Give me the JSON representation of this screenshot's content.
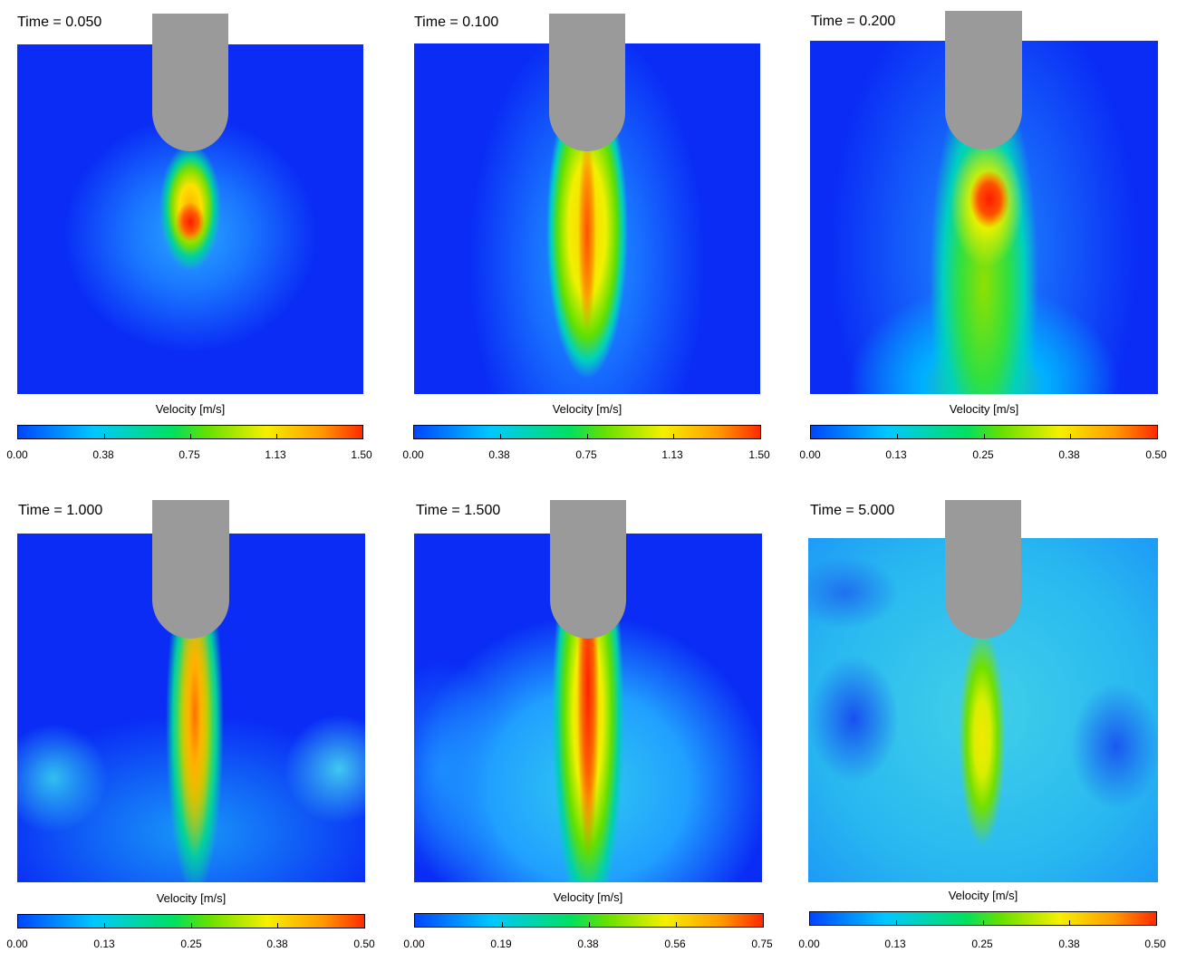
{
  "panels": [
    {
      "time_label": "Time = 0.050",
      "colorbar_title": "Velocity [m/s]",
      "ticks": [
        "0.00",
        "0.38",
        "0.75",
        "1.13",
        "1.50"
      ]
    },
    {
      "time_label": "Time = 0.100",
      "colorbar_title": "Velocity [m/s]",
      "ticks": [
        "0.00",
        "0.38",
        "0.75",
        "1.13",
        "1.50"
      ]
    },
    {
      "time_label": "Time = 0.200",
      "colorbar_title": "Velocity [m/s]",
      "ticks": [
        "0.00",
        "0.13",
        "0.25",
        "0.38",
        "0.50"
      ]
    },
    {
      "time_label": "Time = 1.000",
      "colorbar_title": "Velocity [m/s]",
      "ticks": [
        "0.00",
        "0.13",
        "0.25",
        "0.38",
        "0.50"
      ]
    },
    {
      "time_label": "Time = 1.500",
      "colorbar_title": "Velocity [m/s]",
      "ticks": [
        "0.00",
        "0.19",
        "0.38",
        "0.56",
        "0.75"
      ]
    },
    {
      "time_label": "Time = 5.000",
      "colorbar_title": "Velocity [m/s]",
      "ticks": [
        "0.00",
        "0.13",
        "0.25",
        "0.38",
        "0.50"
      ]
    }
  ],
  "colors": {
    "background_fluid": "#0a2cf5",
    "probe": "#9a9a9a",
    "colormap": [
      "#0046ff",
      "#00c8ff",
      "#00e060",
      "#f5f000",
      "#ff2a00"
    ]
  }
}
